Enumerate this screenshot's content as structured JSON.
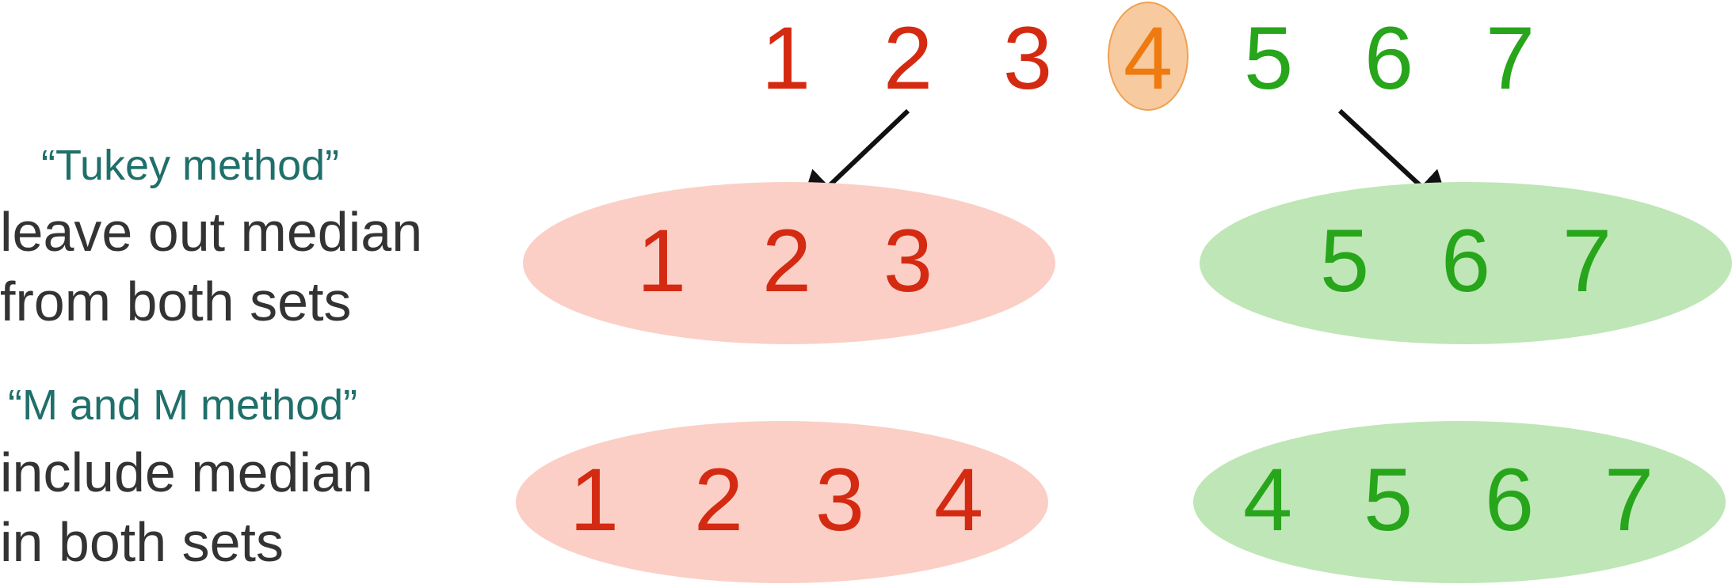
{
  "top_sequence": [
    "1",
    "2",
    "3",
    "4",
    "5",
    "6",
    "7"
  ],
  "median": "4",
  "tukey": {
    "title": "“Tukey method”",
    "line1": "leave out median",
    "line2": "from both sets",
    "lower_set": [
      "1",
      "2",
      "3"
    ],
    "upper_set": [
      "5",
      "6",
      "7"
    ]
  },
  "mm": {
    "title": "“M and M method”",
    "line1": "include median",
    "line2": "in both sets",
    "lower_set": [
      "1",
      "2",
      "3",
      "4"
    ],
    "upper_set": [
      "4",
      "5",
      "6",
      "7"
    ]
  },
  "colors": {
    "lower": "#d42a12",
    "median": "#ee7a10",
    "upper": "#27a51b",
    "lower_fill": "#fbcfc6",
    "upper_fill": "#bfe6b6",
    "method_text": "#1f6f6a",
    "body_text": "#333333"
  }
}
